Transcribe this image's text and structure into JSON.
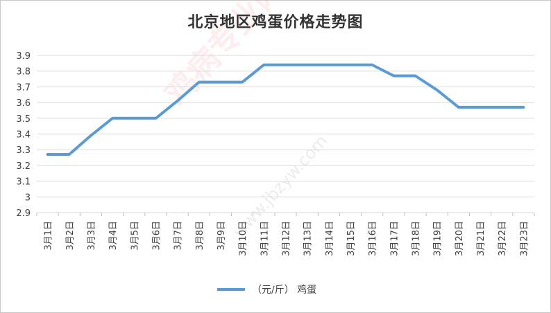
{
  "chart_data": {
    "type": "line",
    "title": "北京地区鸡蛋价格走势图",
    "categories": [
      "3月1日",
      "3月2日",
      "3月3日",
      "3月4日",
      "3月5日",
      "3月6日",
      "3月7日",
      "3月8日",
      "3月9日",
      "3月10日",
      "3月11日",
      "3月12日",
      "3月13日",
      "3月14日",
      "3月15日",
      "3月16日",
      "3月17日",
      "3月18日",
      "3月19日",
      "3月20日",
      "3月21日",
      "3月22日",
      "3月23日"
    ],
    "series": [
      {
        "name": "（元/斤） 鸡蛋",
        "values": [
          3.27,
          3.27,
          3.39,
          3.5,
          3.5,
          3.5,
          3.61,
          3.73,
          3.73,
          3.73,
          3.84,
          3.84,
          3.84,
          3.84,
          3.84,
          3.84,
          3.77,
          3.77,
          3.68,
          3.57,
          3.57,
          3.57,
          3.57
        ],
        "color": "#5b9bd5"
      }
    ],
    "yticks": [
      "2.9",
      "3",
      "3.1",
      "3.2",
      "3.3",
      "3.4",
      "3.5",
      "3.6",
      "3.7",
      "3.8",
      "3.9"
    ],
    "ylim": [
      2.9,
      3.9
    ],
    "grid": true,
    "legend_position": "bottom"
  },
  "watermark": {
    "main": "鸡病专业网",
    "sub": "www.jbzyw.com"
  }
}
